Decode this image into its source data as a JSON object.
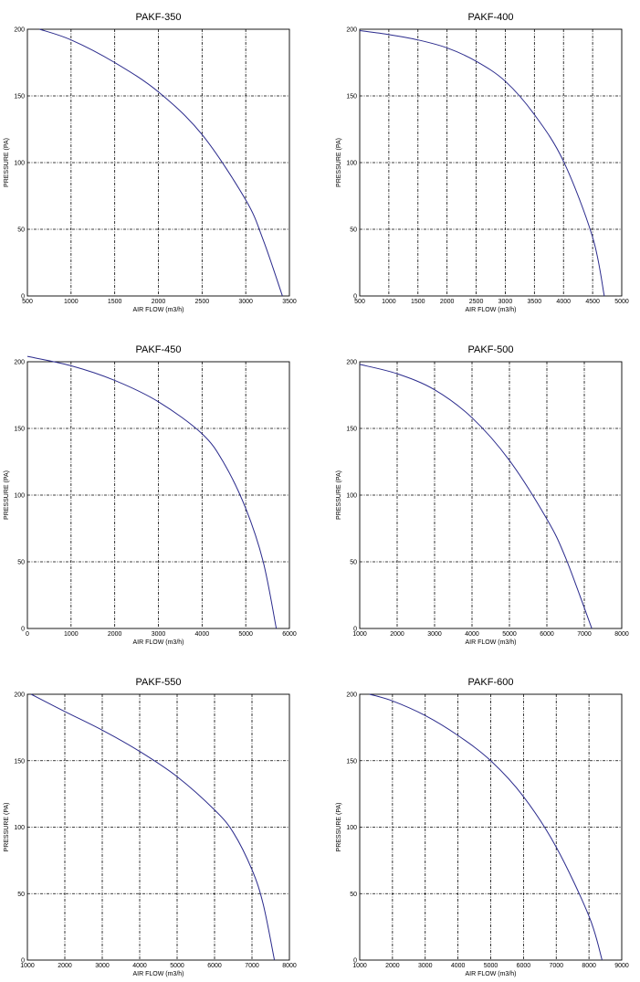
{
  "chart_data": [
    {
      "type": "line",
      "title": "PAKF-350",
      "xlabel": "AIR FLOW (m3/h)",
      "ylabel": "PRESSURE (PA)",
      "xlim": [
        500,
        3500
      ],
      "ylim": [
        0,
        200
      ],
      "xticks": [
        500,
        1000,
        1500,
        2000,
        2500,
        3000,
        3500
      ],
      "yticks": [
        0,
        50,
        100,
        150,
        200
      ],
      "grid": true,
      "line_color": "#2a2a8c",
      "series": [
        {
          "x": [
            640,
            1000,
            1500,
            2000,
            2500,
            3000,
            3200,
            3420
          ],
          "y": [
            200,
            192,
            175,
            153,
            121,
            72,
            42,
            0
          ]
        }
      ]
    },
    {
      "type": "line",
      "title": "PAKF-400",
      "xlabel": "AIR FLOW (m3/h)",
      "ylabel": "PRESSURE (PA)",
      "xlim": [
        500,
        5000
      ],
      "ylim": [
        0,
        200
      ],
      "xticks": [
        500,
        1000,
        1500,
        2000,
        2500,
        3000,
        3500,
        4000,
        4500,
        5000
      ],
      "yticks": [
        0,
        50,
        100,
        150,
        200
      ],
      "grid": true,
      "line_color": "#2a2a8c",
      "series": [
        {
          "x": [
            500,
            1000,
            1500,
            2000,
            2500,
            3000,
            3500,
            4000,
            4500,
            4700
          ],
          "y": [
            199,
            196,
            192,
            186,
            176,
            161,
            136,
            101,
            44,
            0
          ]
        }
      ]
    },
    {
      "type": "line",
      "title": "PAKF-450",
      "xlabel": "AIR FLOW (m3/h)",
      "ylabel": "PRESSURE (PA)",
      "xlim": [
        0,
        6000
      ],
      "ylim": [
        0,
        200
      ],
      "xticks": [
        0,
        1000,
        2000,
        3000,
        4000,
        5000,
        6000
      ],
      "yticks": [
        0,
        50,
        100,
        150,
        200
      ],
      "grid": true,
      "line_color": "#2a2a8c",
      "series": [
        {
          "x": [
            0,
            1000,
            2000,
            3000,
            4000,
            4500,
            5000,
            5400,
            5700
          ],
          "y": [
            204,
            197,
            186,
            170,
            146,
            124,
            90,
            50,
            0
          ]
        }
      ]
    },
    {
      "type": "line",
      "title": "PAKF-500",
      "xlabel": "AIR FLOW (m3/h)",
      "ylabel": "PRESSURE (PA)",
      "xlim": [
        1000,
        8000
      ],
      "ylim": [
        0,
        200
      ],
      "xticks": [
        1000,
        2000,
        3000,
        4000,
        5000,
        6000,
        7000,
        8000
      ],
      "yticks": [
        0,
        50,
        100,
        150,
        200
      ],
      "grid": true,
      "line_color": "#2a2a8c",
      "series": [
        {
          "x": [
            1000,
            2000,
            3000,
            4000,
            5000,
            6000,
            6500,
            7200
          ],
          "y": [
            198,
            191,
            179,
            158,
            126,
            82,
            53,
            0
          ]
        }
      ]
    },
    {
      "type": "line",
      "title": "PAKF-550",
      "xlabel": "AIR FLOW (m3/h)",
      "ylabel": "PRESSURE (PA)",
      "xlim": [
        1000,
        8000
      ],
      "ylim": [
        0,
        200
      ],
      "xticks": [
        1000,
        2000,
        3000,
        4000,
        5000,
        6000,
        7000,
        8000
      ],
      "yticks": [
        0,
        50,
        100,
        150,
        200
      ],
      "grid": true,
      "line_color": "#2a2a8c",
      "series": [
        {
          "x": [
            1100,
            2000,
            3000,
            4000,
            5000,
            6000,
            6500,
            7000,
            7300,
            7600
          ],
          "y": [
            200,
            187,
            173,
            157,
            138,
            113,
            96,
            68,
            42,
            0
          ]
        }
      ]
    },
    {
      "type": "line",
      "title": "PAKF-600",
      "xlabel": "AIR FLOW (m3/h)",
      "ylabel": "PRESSURE (PA)",
      "xlim": [
        1000,
        9000
      ],
      "ylim": [
        0,
        200
      ],
      "xticks": [
        1000,
        2000,
        3000,
        4000,
        5000,
        6000,
        7000,
        8000,
        9000
      ],
      "yticks": [
        0,
        50,
        100,
        150,
        200
      ],
      "grid": true,
      "line_color": "#2a2a8c",
      "series": [
        {
          "x": [
            1300,
            2000,
            3000,
            4000,
            5000,
            6000,
            7000,
            8000,
            8400
          ],
          "y": [
            200,
            195,
            184,
            169,
            150,
            123,
            85,
            33,
            0
          ]
        }
      ]
    }
  ]
}
